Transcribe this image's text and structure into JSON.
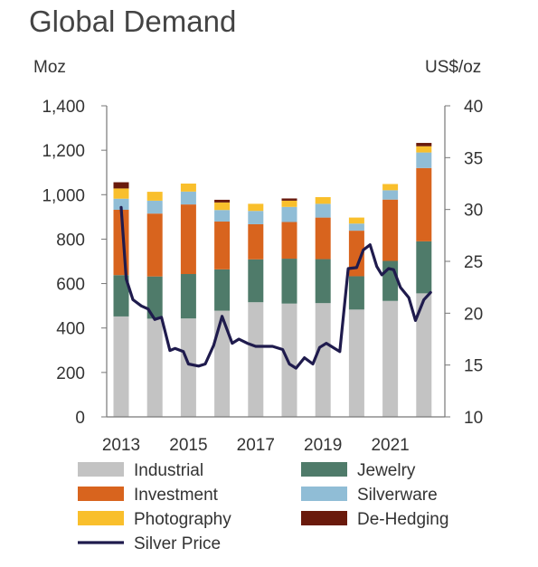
{
  "chart_data": {
    "type": "bar",
    "title": "Global Demand",
    "y_left_unit": "Moz",
    "y_right_unit": "US$/oz",
    "ylim": [
      0,
      1400
    ],
    "ylim_right": [
      10,
      40
    ],
    "y_ticks": [
      "0",
      "200",
      "400",
      "600",
      "800",
      "1,000",
      "1,200",
      "1,400"
    ],
    "y_right_ticks": [
      "10",
      "15",
      "20",
      "25",
      "30",
      "35",
      "40"
    ],
    "x_tick_labels": [
      "2013",
      "2015",
      "2017",
      "2019",
      "2021"
    ],
    "categories": [
      "2013",
      "2014",
      "2015",
      "2016",
      "2017",
      "2018",
      "2019",
      "2020",
      "2021",
      "2022"
    ],
    "stacked": true,
    "grid": false,
    "legend_position": "bottom",
    "series": [
      {
        "name": "Industrial",
        "color": "#c3c3c3",
        "values": [
          452,
          442,
          443,
          478,
          516,
          510,
          512,
          483,
          522,
          556
        ]
      },
      {
        "name": "Jewelry",
        "color": "#4f7b6a",
        "values": [
          186,
          190,
          200,
          186,
          193,
          202,
          198,
          150,
          180,
          234
        ]
      },
      {
        "name": "Investment",
        "color": "#d8641e",
        "values": [
          294,
          283,
          313,
          215,
          158,
          165,
          187,
          205,
          276,
          330
        ]
      },
      {
        "name": "Silverware",
        "color": "#90bdd6",
        "values": [
          50,
          58,
          58,
          52,
          60,
          68,
          62,
          32,
          42,
          70
        ]
      },
      {
        "name": "Photography",
        "color": "#f9bf2c",
        "values": [
          46,
          40,
          36,
          34,
          32,
          28,
          30,
          27,
          28,
          28
        ]
      },
      {
        "name": "De-Hedging",
        "color": "#6a1a0c",
        "values": [
          28,
          0,
          0,
          12,
          0,
          10,
          0,
          0,
          0,
          15
        ]
      }
    ],
    "line_series": {
      "name": "Silver Price",
      "color": "#1f1b4d",
      "axis": "right",
      "x": [
        2013.0,
        2013.15,
        2013.35,
        2013.6,
        2013.8,
        2014.0,
        2014.2,
        2014.45,
        2014.6,
        2014.85,
        2015.0,
        2015.3,
        2015.5,
        2015.75,
        2016.0,
        2016.3,
        2016.5,
        2016.75,
        2017.0,
        2017.25,
        2017.5,
        2017.8,
        2018.0,
        2018.2,
        2018.45,
        2018.7,
        2018.9,
        2019.1,
        2019.3,
        2019.5,
        2019.75,
        2020.0,
        2020.2,
        2020.4,
        2020.6,
        2020.75,
        2020.95,
        2021.1,
        2021.3,
        2021.55,
        2021.75,
        2022.0,
        2022.2
      ],
      "values": [
        30.2,
        23.3,
        21.3,
        20.7,
        20.4,
        19.4,
        19.6,
        16.4,
        16.6,
        16.3,
        15.1,
        14.9,
        15.1,
        16.9,
        19.7,
        17.1,
        17.5,
        17.1,
        16.8,
        16.8,
        16.8,
        16.5,
        15.1,
        14.7,
        15.7,
        15.1,
        16.7,
        17.1,
        16.7,
        16.3,
        24.3,
        24.4,
        26.1,
        26.6,
        24.5,
        23.7,
        24.3,
        24.2,
        22.5,
        21.5,
        19.3,
        21.3,
        22.0
      ]
    }
  }
}
